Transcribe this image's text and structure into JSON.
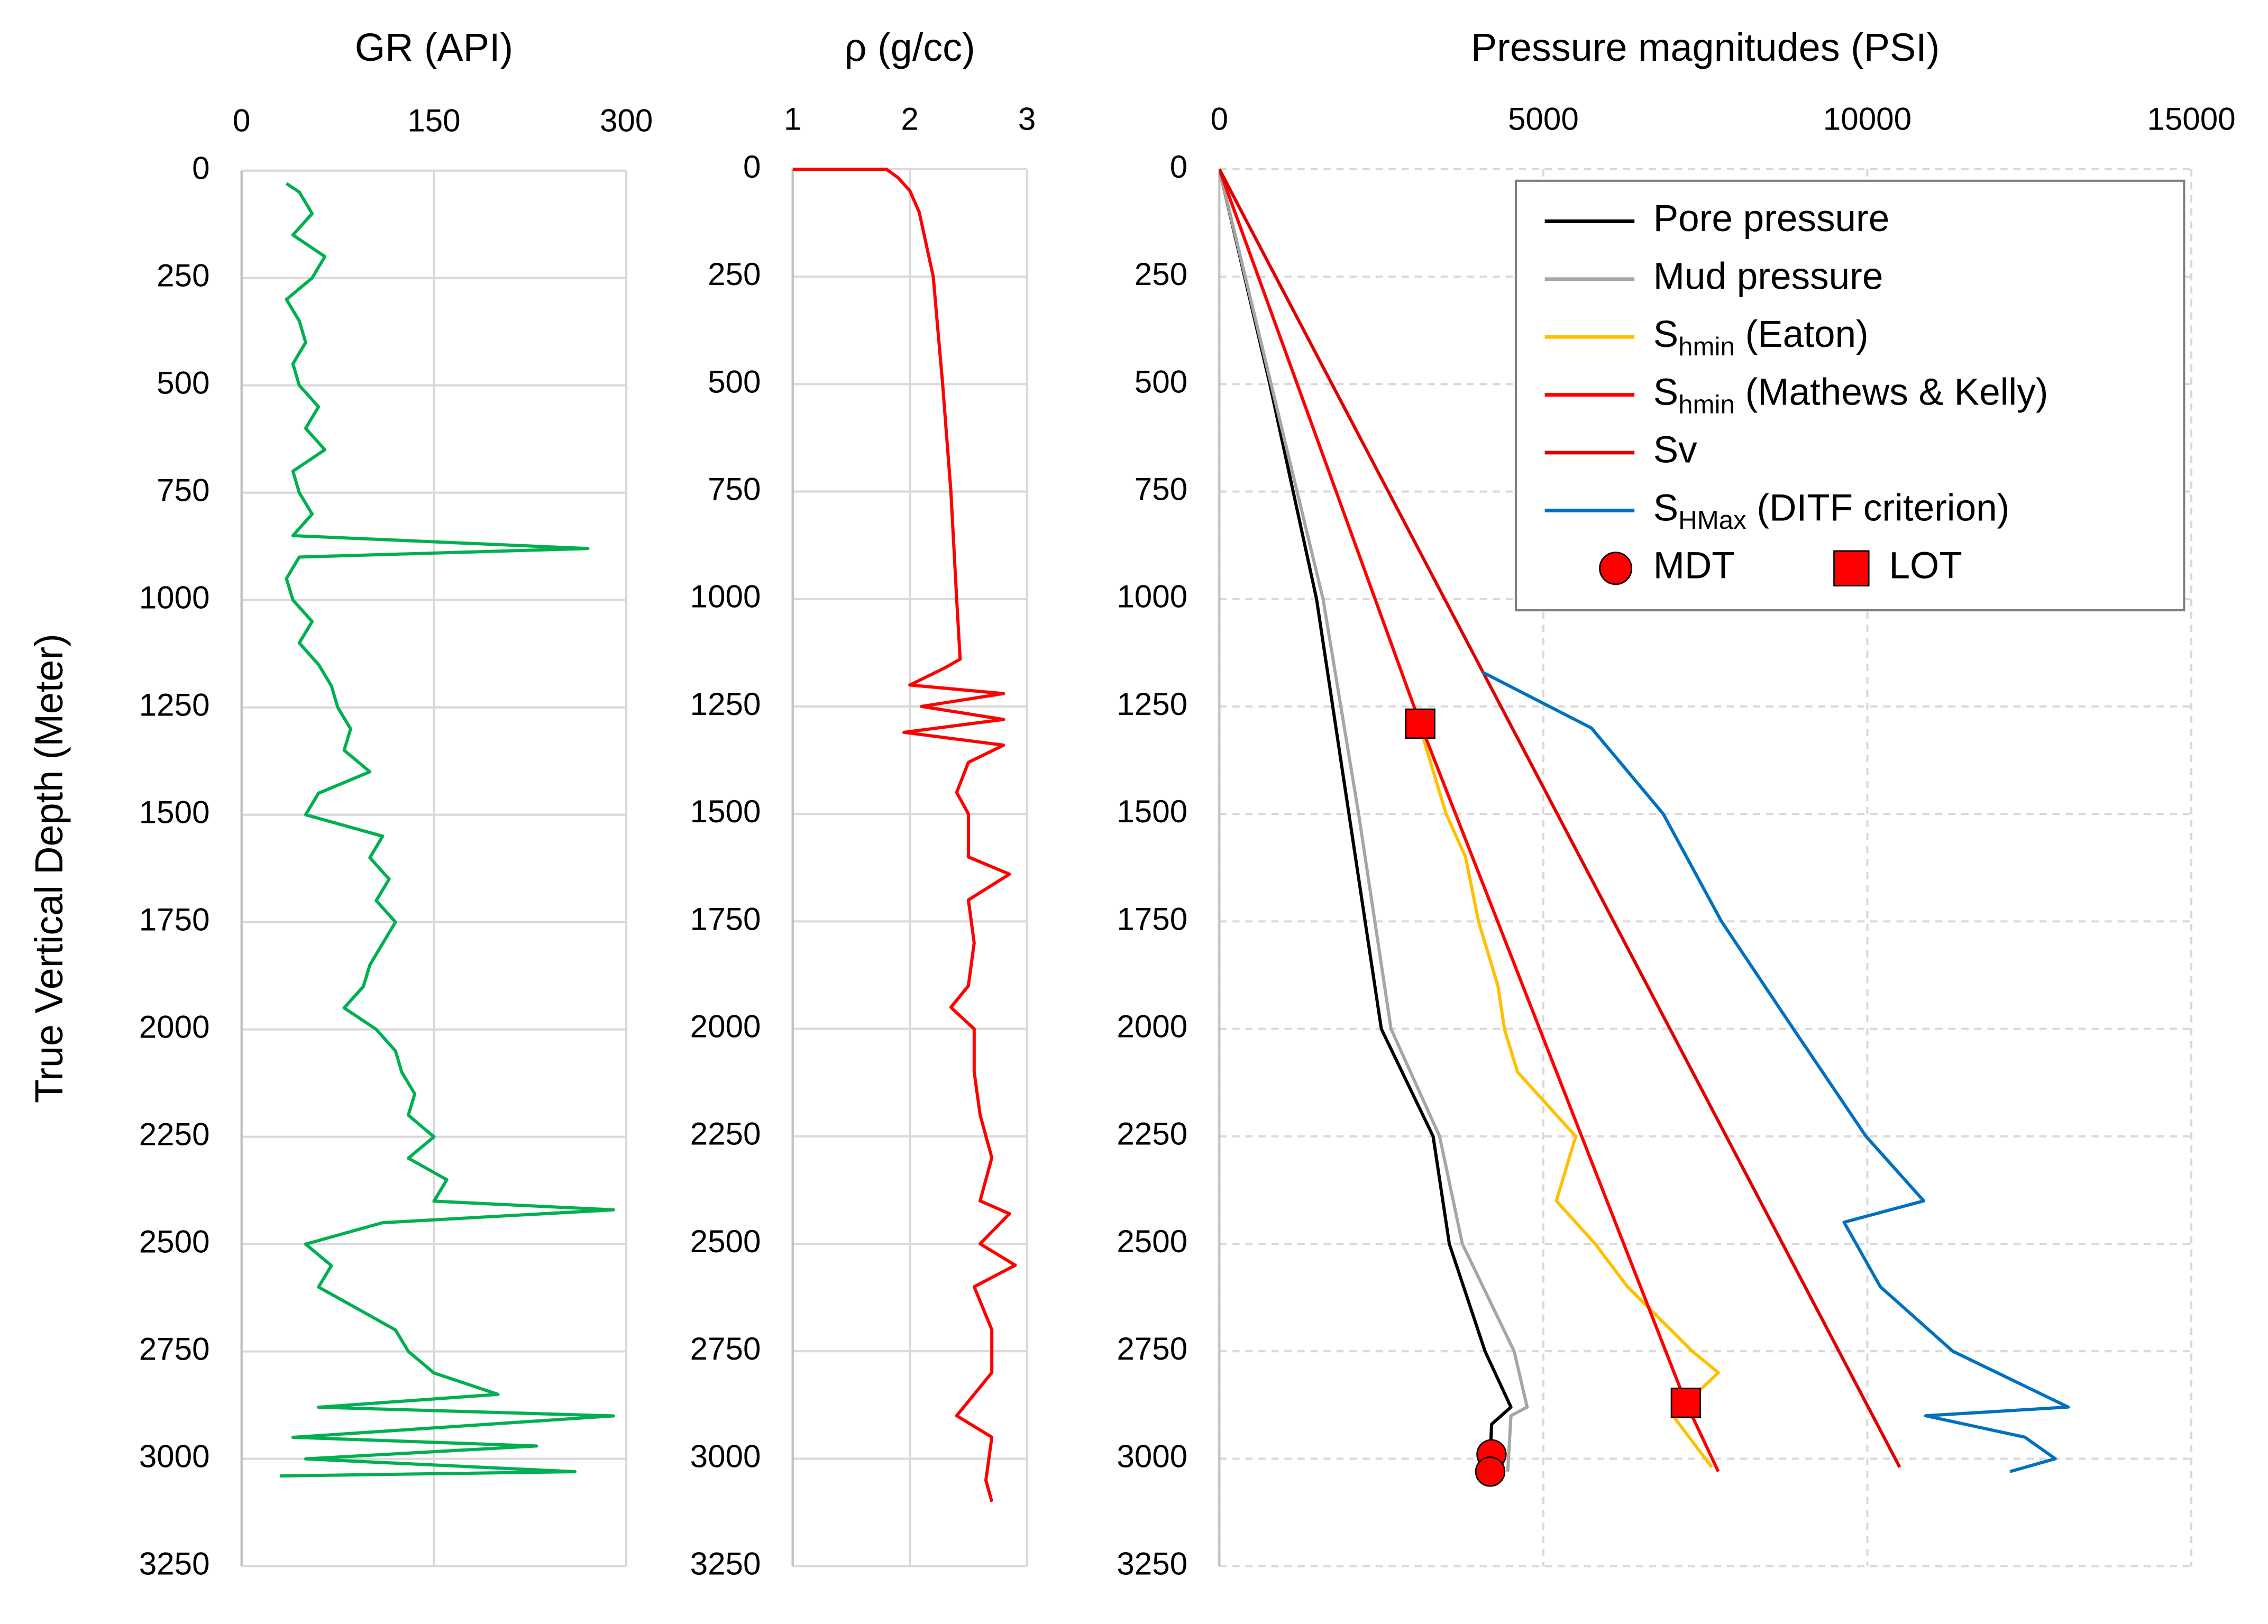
{
  "chart_data": [
    {
      "type": "line",
      "title": "GR (API)",
      "ylabel": "True Vertical Depth (Meter)",
      "xlim": [
        0,
        300
      ],
      "xticks": [
        0,
        150,
        300
      ],
      "ylim": [
        0,
        3250
      ],
      "yticks": [
        0,
        250,
        500,
        750,
        1000,
        1250,
        1500,
        1750,
        2000,
        2250,
        2500,
        2750,
        3000,
        3250
      ],
      "y_inverted": true,
      "grid": true,
      "grid_style": "solid",
      "series": [
        {
          "color": "#00b050",
          "y": [
            30,
            50,
            100,
            150,
            200,
            250,
            300,
            350,
            400,
            450,
            500,
            550,
            600,
            650,
            700,
            750,
            800,
            850,
            880,
            900,
            950,
            1000,
            1050,
            1100,
            1150,
            1200,
            1250,
            1300,
            1350,
            1400,
            1450,
            1500,
            1550,
            1600,
            1650,
            1700,
            1750,
            1800,
            1850,
            1900,
            1950,
            2000,
            2050,
            2100,
            2150,
            2200,
            2250,
            2300,
            2350,
            2400,
            2420,
            2450,
            2500,
            2550,
            2600,
            2650,
            2700,
            2750,
            2800,
            2850,
            2880,
            2900,
            2950,
            2970,
            3000,
            3030,
            3040
          ],
          "x": [
            35,
            45,
            55,
            40,
            65,
            55,
            35,
            45,
            50,
            40,
            45,
            60,
            50,
            65,
            40,
            45,
            55,
            40,
            270,
            45,
            35,
            40,
            55,
            45,
            60,
            70,
            75,
            85,
            80,
            100,
            60,
            50,
            110,
            100,
            115,
            105,
            120,
            110,
            100,
            95,
            80,
            105,
            120,
            125,
            135,
            130,
            150,
            130,
            160,
            150,
            290,
            110,
            50,
            70,
            60,
            90,
            120,
            130,
            150,
            200,
            60,
            290,
            40,
            230,
            50,
            260,
            30
          ]
        }
      ]
    },
    {
      "type": "line",
      "title": "ρ (g/cc)",
      "xlim": [
        1,
        3
      ],
      "xticks": [
        1,
        2,
        3
      ],
      "ylim": [
        0,
        3250
      ],
      "yticks": [
        0,
        250,
        500,
        750,
        1000,
        1250,
        1500,
        1750,
        2000,
        2250,
        2500,
        2750,
        3000,
        3250
      ],
      "y_inverted": true,
      "grid": true,
      "grid_style": "solid",
      "series": [
        {
          "color": "#ff0000",
          "y": [
            0,
            0,
            20,
            50,
            100,
            250,
            500,
            750,
            1000,
            1140,
            1160,
            1200,
            1220,
            1250,
            1280,
            1310,
            1340,
            1380,
            1450,
            1500,
            1600,
            1640,
            1700,
            1800,
            1900,
            1950,
            2000,
            2100,
            2200,
            2300,
            2400,
            2430,
            2500,
            2550,
            2600,
            2700,
            2800,
            2900,
            2950,
            3050,
            3100
          ],
          "x": [
            1.0,
            1.8,
            1.9,
            2.0,
            2.08,
            2.2,
            2.28,
            2.35,
            2.4,
            2.43,
            2.3,
            2.0,
            2.8,
            2.1,
            2.8,
            1.95,
            2.8,
            2.5,
            2.4,
            2.5,
            2.5,
            2.85,
            2.5,
            2.55,
            2.5,
            2.35,
            2.55,
            2.55,
            2.6,
            2.7,
            2.6,
            2.85,
            2.6,
            2.9,
            2.55,
            2.7,
            2.7,
            2.4,
            2.7,
            2.65,
            2.7
          ]
        }
      ]
    },
    {
      "type": "line",
      "title": "Pressure magnitudes (PSI)",
      "xlim": [
        0,
        15000
      ],
      "xticks": [
        0,
        5000,
        10000,
        15000
      ],
      "ylim": [
        0,
        3250
      ],
      "yticks": [
        0,
        250,
        500,
        750,
        1000,
        1250,
        1500,
        1750,
        2000,
        2250,
        2500,
        2750,
        3000,
        3250
      ],
      "y_inverted": true,
      "grid": true,
      "grid_style": "dashed",
      "legend": "upper right",
      "series": [
        {
          "name": "Pore pressure",
          "color": "#000000",
          "y": [
            0,
            500,
            1000,
            1500,
            2000,
            2250,
            2500,
            2750,
            2880,
            2920,
            3000
          ],
          "x": [
            0,
            780,
            1500,
            2000,
            2500,
            3300,
            3550,
            4100,
            4500,
            4200,
            4180
          ]
        },
        {
          "name": "Mud pressure",
          "color": "#a6a6a6",
          "y": [
            0,
            500,
            1000,
            1500,
            2000,
            2250,
            2500,
            2750,
            2880,
            2900,
            3030
          ],
          "x": [
            0,
            800,
            1600,
            2150,
            2650,
            3400,
            3750,
            4550,
            4750,
            4500,
            4450
          ]
        },
        {
          "name": [
            "S",
            "hmin",
            " (Eaton)"
          ],
          "color": "#ffc000",
          "y": [
            1300,
            1400,
            1500,
            1600,
            1750,
            1900,
            2000,
            2100,
            2250,
            2400,
            2500,
            2600,
            2750,
            2800,
            2900,
            3020
          ],
          "x": [
            3100,
            3300,
            3500,
            3800,
            4000,
            4300,
            4400,
            4600,
            5500,
            5200,
            5800,
            6300,
            7300,
            7700,
            7000,
            7600
          ]
        },
        {
          "name": [
            "S",
            "hmin",
            " (Mathews & Kelly)"
          ],
          "color": "#ff0000",
          "y": [
            0,
            1290,
            2870,
            3030
          ],
          "x": [
            0,
            3100,
            7200,
            7700
          ]
        },
        {
          "name": "Sv",
          "color": "#e00000",
          "y": [
            0,
            3020
          ],
          "x": [
            0,
            10500
          ]
        },
        {
          "name": [
            "S",
            "HMax",
            " (DITF criterion)"
          ],
          "color": "#0070c0",
          "y": [
            1170,
            1300,
            1500,
            1750,
            2000,
            2250,
            2400,
            2450,
            2600,
            2750,
            2880,
            2900,
            2950,
            3000,
            3030
          ],
          "x": [
            4060,
            5740,
            6850,
            7750,
            8860,
            9980,
            10870,
            9640,
            10200,
            11320,
            13100,
            10900,
            12430,
            12900,
            12200
          ]
        }
      ],
      "points": [
        {
          "name": "MDT",
          "marker": "circle",
          "color": "#ff0000",
          "y": [
            2990,
            3030
          ],
          "x": [
            4200,
            4180
          ]
        },
        {
          "name": "LOT",
          "marker": "square",
          "color": "#ff0000",
          "y": [
            1290,
            2870
          ],
          "x": [
            3100,
            7200
          ]
        }
      ]
    }
  ]
}
